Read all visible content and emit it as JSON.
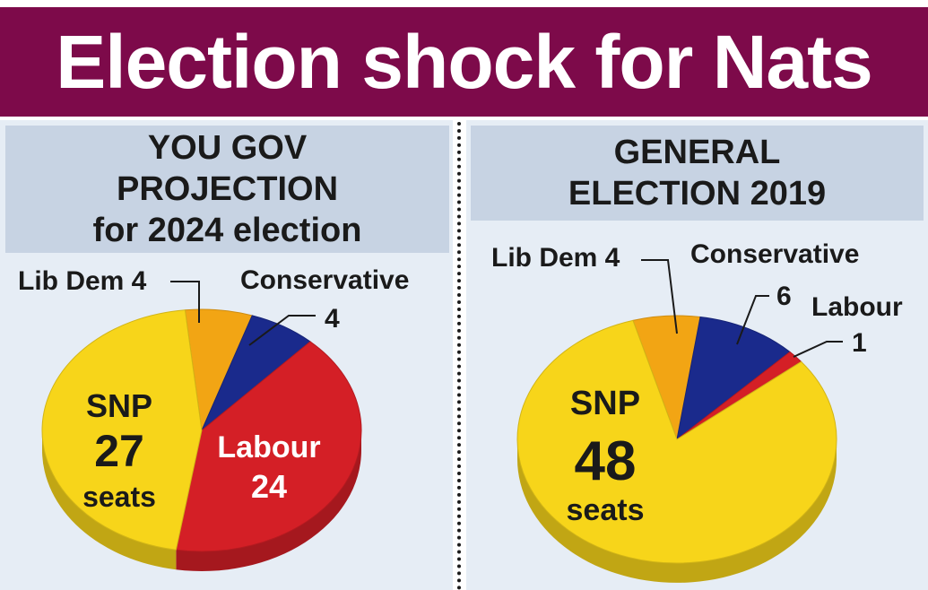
{
  "title": "Election shock for Nats",
  "colors": {
    "banner": "#7d0a4a",
    "snp": "#f7d51a",
    "labour": "#d41f26",
    "conservative": "#1a2a8c",
    "libdem": "#f2a514",
    "panel": "#e6edf5",
    "header": "#c7d3e3"
  },
  "chart_data": [
    {
      "type": "pie",
      "title_lines": [
        "YOU GOV",
        "PROJECTION",
        "for 2024 election"
      ],
      "slices": [
        {
          "party": "SNP",
          "seats": 27
        },
        {
          "party": "Labour",
          "seats": 24
        },
        {
          "party": "Conservative",
          "seats": 4
        },
        {
          "party": "Lib Dem",
          "seats": 4
        }
      ],
      "labels": {
        "libdem": "Lib Dem 4",
        "conservative_name": "Conservative",
        "conservative_value": "4",
        "labour_name": "Labour",
        "labour_value": "24",
        "snp_name": "SNP",
        "snp_value": "27",
        "snp_unit": "seats"
      }
    },
    {
      "type": "pie",
      "title_lines": [
        "GENERAL",
        "ELECTION 2019"
      ],
      "slices": [
        {
          "party": "SNP",
          "seats": 48
        },
        {
          "party": "Lib Dem",
          "seats": 4
        },
        {
          "party": "Conservative",
          "seats": 6
        },
        {
          "party": "Labour",
          "seats": 1
        }
      ],
      "labels": {
        "libdem": "Lib Dem 4",
        "conservative_name": "Conservative",
        "conservative_value": "6",
        "labour_name": "Labour",
        "labour_value": "1",
        "snp_name": "SNP",
        "snp_value": "48",
        "snp_unit": "seats"
      }
    }
  ]
}
